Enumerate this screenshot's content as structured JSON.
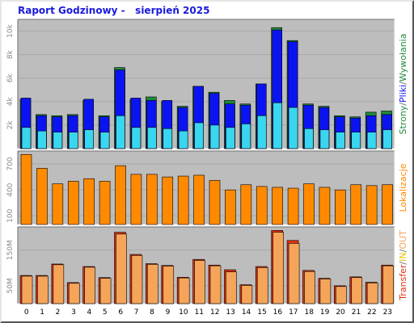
{
  "header": {
    "title": "Raport Godzinowy -   sierpień 2025"
  },
  "colors": {
    "page_bg": "#ffffff",
    "panel_bg": "#bdbdbd",
    "strony": "#1f8a3b",
    "pliki": "#0b14f0",
    "wywolania": "#3ad6f0",
    "lokalizacje": "#ff8a00",
    "transfer": "#e03010",
    "in_out": "#f5a55a",
    "slash": "#707070"
  },
  "side_labels": {
    "panel1": [
      {
        "text": "Strony",
        "color": "#1f8a3b"
      },
      {
        "text": "/",
        "color": "#707070"
      },
      {
        "text": "Pliki",
        "color": "#0b14f0"
      },
      {
        "text": "/",
        "color": "#707070"
      },
      {
        "text": "Wywołania",
        "color": "#1f8a3b"
      }
    ],
    "panel2": [
      {
        "text": "Lokalizacje",
        "color": "#ff8a00"
      }
    ],
    "panel3": [
      {
        "text": "Transfer",
        "color": "#e03010"
      },
      {
        "text": "/",
        "color": "#707070"
      },
      {
        "text": "IN",
        "color": "#e8c000"
      },
      {
        "text": "/",
        "color": "#707070"
      },
      {
        "text": "OUT",
        "color": "#f5a55a"
      }
    ]
  },
  "chart_data": [
    {
      "type": "bar",
      "title": "Strony/Pliki/Wywołania",
      "x": [
        "0",
        "1",
        "2",
        "3",
        "4",
        "5",
        "6",
        "7",
        "8",
        "9",
        "10",
        "11",
        "12",
        "13",
        "14",
        "15",
        "16",
        "17",
        "18",
        "19",
        "20",
        "21",
        "22",
        "23"
      ],
      "yticks": [
        "2k",
        "4k",
        "6k",
        "8k",
        "10k"
      ],
      "ylim": [
        0,
        11000
      ],
      "series": [
        {
          "name": "Strony",
          "values": [
            4200,
            2900,
            2800,
            2900,
            4100,
            2800,
            6900,
            4200,
            4400,
            4000,
            3600,
            5300,
            4800,
            4100,
            3800,
            5500,
            10300,
            9200,
            3800,
            3600,
            2800,
            2700,
            3100,
            3200
          ]
        },
        {
          "name": "Pliki",
          "values": [
            4300,
            2800,
            2700,
            2800,
            4200,
            2700,
            6700,
            4300,
            4100,
            4100,
            3500,
            5300,
            4700,
            3800,
            3700,
            5500,
            10100,
            9100,
            3700,
            3500,
            2700,
            2600,
            2800,
            2900
          ]
        },
        {
          "name": "Wywołania",
          "values": [
            1800,
            1500,
            1400,
            1400,
            1600,
            1400,
            2800,
            1800,
            1800,
            1700,
            1500,
            2200,
            2000,
            1800,
            2100,
            2800,
            3900,
            3500,
            1700,
            1600,
            1400,
            1400,
            1400,
            1600
          ]
        }
      ]
    },
    {
      "type": "bar",
      "title": "Lokalizacje",
      "x": [
        "0",
        "1",
        "2",
        "3",
        "4",
        "5",
        "6",
        "7",
        "8",
        "9",
        "10",
        "11",
        "12",
        "13",
        "14",
        "15",
        "16",
        "17",
        "18",
        "19",
        "20",
        "21",
        "22",
        "23"
      ],
      "yticks": [
        "100",
        "400",
        "700"
      ],
      "ylim": [
        0,
        850
      ],
      "series": [
        {
          "name": "Lokalizacje",
          "values": [
            810,
            650,
            470,
            500,
            530,
            500,
            680,
            580,
            580,
            550,
            560,
            570,
            510,
            400,
            460,
            440,
            430,
            420,
            470,
            430,
            400,
            460,
            450,
            460
          ]
        }
      ]
    },
    {
      "type": "bar",
      "title": "Transfer/IN/OUT",
      "x": [
        "0",
        "1",
        "2",
        "3",
        "4",
        "5",
        "6",
        "7",
        "8",
        "9",
        "10",
        "11",
        "12",
        "13",
        "14",
        "15",
        "16",
        "17",
        "18",
        "19",
        "20",
        "21",
        "22",
        "23"
      ],
      "yticks": [
        "50M",
        "150M"
      ],
      "ylim": [
        0,
        215
      ],
      "series": [
        {
          "name": "Transfer",
          "values": [
            79,
            79,
            111,
            59,
            104,
            73,
            200,
            138,
            112,
            107,
            74,
            124,
            108,
            95,
            53,
            104,
            205,
            177,
            93,
            71,
            50,
            75,
            60,
            108
          ]
        },
        {
          "name": "OUT",
          "values": [
            77,
            77,
            109,
            57,
            102,
            71,
            195,
            135,
            110,
            105,
            72,
            121,
            106,
            89,
            51,
            101,
            200,
            169,
            90,
            69,
            48,
            73,
            58,
            106
          ]
        }
      ]
    }
  ]
}
